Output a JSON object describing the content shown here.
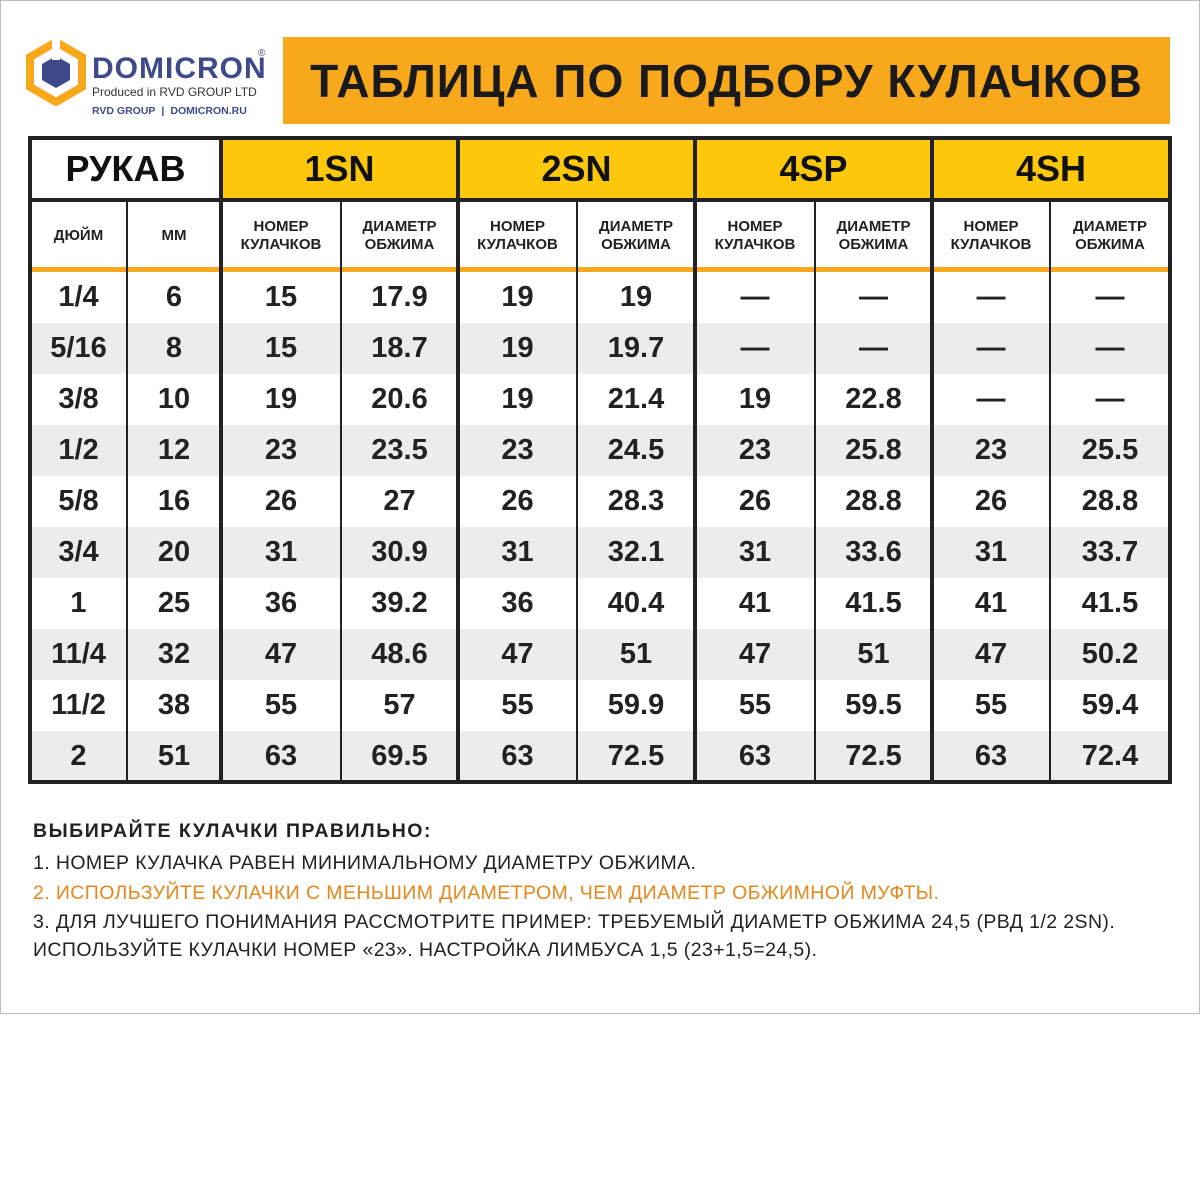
{
  "logo": {
    "brand": "DOMICRON",
    "registered": "®",
    "tagline": "Produced in RVD GROUP LTD",
    "group": "RVD GROUP",
    "separator": "|",
    "site": "DOMICRON.RU"
  },
  "title": "ТАБЛИЦА ПО ПОДБОРУ КУЛАЧКОВ",
  "table": {
    "groups": [
      "РУКАВ",
      "1SN",
      "2SN",
      "4SP",
      "4SH"
    ],
    "subheaders": [
      "ДЮЙМ",
      "ММ",
      "НОМЕР КУЛАЧКОВ",
      "ДИАМЕТР ОБЖИМА",
      "НОМЕР КУЛАЧКОВ",
      "ДИАМЕТР ОБЖИМА",
      "НОМЕР КУЛАЧКОВ",
      "ДИАМЕТР ОБЖИМА",
      "НОМЕР КУЛАЧКОВ",
      "ДИАМЕТР ОБЖИМА"
    ],
    "rows": [
      [
        "1/4",
        "6",
        "15",
        "17.9",
        "19",
        "19",
        "—",
        "—",
        "—",
        "—"
      ],
      [
        "5/16",
        "8",
        "15",
        "18.7",
        "19",
        "19.7",
        "—",
        "—",
        "—",
        "—"
      ],
      [
        "3/8",
        "10",
        "19",
        "20.6",
        "19",
        "21.4",
        "19",
        "22.8",
        "—",
        "—"
      ],
      [
        "1/2",
        "12",
        "23",
        "23.5",
        "23",
        "24.5",
        "23",
        "25.8",
        "23",
        "25.5"
      ],
      [
        "5/8",
        "16",
        "26",
        "27",
        "26",
        "28.3",
        "26",
        "28.8",
        "26",
        "28.8"
      ],
      [
        "3/4",
        "20",
        "31",
        "30.9",
        "31",
        "32.1",
        "31",
        "33.6",
        "31",
        "33.7"
      ],
      [
        "1",
        "25",
        "36",
        "39.2",
        "36",
        "40.4",
        "41",
        "41.5",
        "41",
        "41.5"
      ],
      [
        "11/4",
        "32",
        "47",
        "48.6",
        "47",
        "51",
        "47",
        "51",
        "47",
        "50.2"
      ],
      [
        "11/2",
        "38",
        "55",
        "57",
        "55",
        "59.9",
        "55",
        "59.5",
        "55",
        "59.4"
      ],
      [
        "2",
        "51",
        "63",
        "69.5",
        "63",
        "72.5",
        "63",
        "72.5",
        "63",
        "72.4"
      ]
    ]
  },
  "notes": {
    "heading": "ВЫБИРАЙТЕ КУЛАЧКИ ПРАВИЛЬНО:",
    "lines": [
      "1. НОМЕР КУЛАЧКА РАВЕН МИНИМАЛЬНОМУ ДИАМЕТРУ ОБЖИМА.",
      "2. ИСПОЛЬЗУЙТЕ КУЛАЧКИ С МЕНЬШИМ ДИАМЕТРОМ, ЧЕМ ДИАМЕТР ОБЖИМНОЙ МУФТЫ.",
      "3. ДЛЯ ЛУЧШЕГО ПОНИМАНИЯ РАССМОТРИТЕ ПРИМЕР: ТРЕБУЕМЫЙ ДИАМЕТР ОБЖИМА 24,5 (РВД 1/2 2SN).",
      "ИСПОЛЬЗУЙТЕ КУЛАЧКИ НОМЕР «23». НАСТРОЙКА ЛИМБУСА 1,5 (23+1,5=24,5)."
    ]
  }
}
